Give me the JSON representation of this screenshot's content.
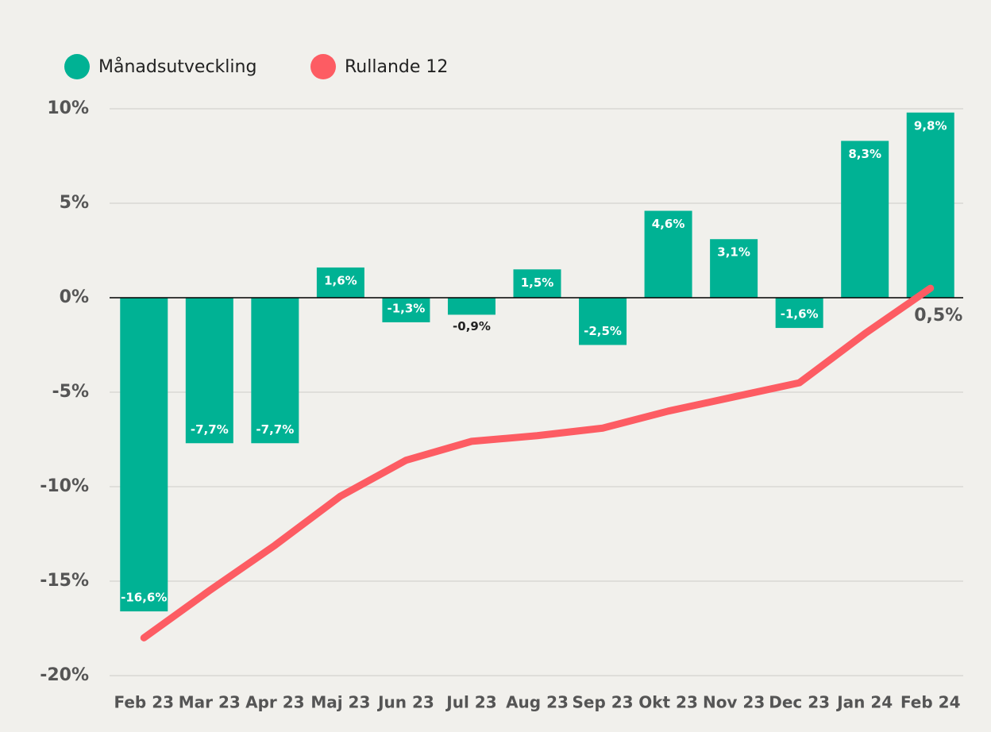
{
  "chart_data": {
    "type": "bar_line",
    "categories": [
      "Feb 23",
      "Mar 23",
      "Apr 23",
      "Maj 23",
      "Jun 23",
      "Jul 23",
      "Aug 23",
      "Sep 23",
      "Okt 23",
      "Nov 23",
      "Dec 23",
      "Jan 24",
      "Feb 24"
    ],
    "series": [
      {
        "name": "Månadsutveckling",
        "type": "bar",
        "color": "#00b294",
        "values": [
          -16.6,
          -7.7,
          -7.7,
          1.6,
          -1.3,
          -0.9,
          1.5,
          -2.5,
          4.6,
          3.1,
          -1.6,
          8.3,
          9.8
        ],
        "value_labels": [
          "-16,6%",
          "-7,7%",
          "-7,7%",
          "1,6%",
          "-1,3%",
          "-0,9%",
          "1,5%",
          "-2,5%",
          "4,6%",
          "3,1%",
          "-1,6%",
          "8,3%",
          "9,8%"
        ]
      },
      {
        "name": "Rullande 12",
        "type": "line",
        "color": "#fd5c63",
        "values": [
          -18.0,
          -15.5,
          -13.1,
          -10.5,
          -8.6,
          -7.6,
          -7.3,
          -6.9,
          -6.0,
          -5.25,
          -4.5,
          -1.9,
          0.5
        ],
        "value_labels": [
          null,
          null,
          null,
          null,
          null,
          null,
          null,
          null,
          null,
          null,
          null,
          null,
          "0,5%"
        ]
      }
    ],
    "ylim": [
      -20,
      10
    ],
    "yticks": [
      {
        "value": 10,
        "label": "10%"
      },
      {
        "value": 5,
        "label": "5%"
      },
      {
        "value": 0,
        "label": "0%"
      },
      {
        "value": -5,
        "label": "-5%"
      },
      {
        "value": -10,
        "label": "-10%"
      },
      {
        "value": -15,
        "label": "-15%"
      },
      {
        "value": -20,
        "label": "-20%"
      }
    ],
    "grid": true,
    "legend": "top-left"
  }
}
